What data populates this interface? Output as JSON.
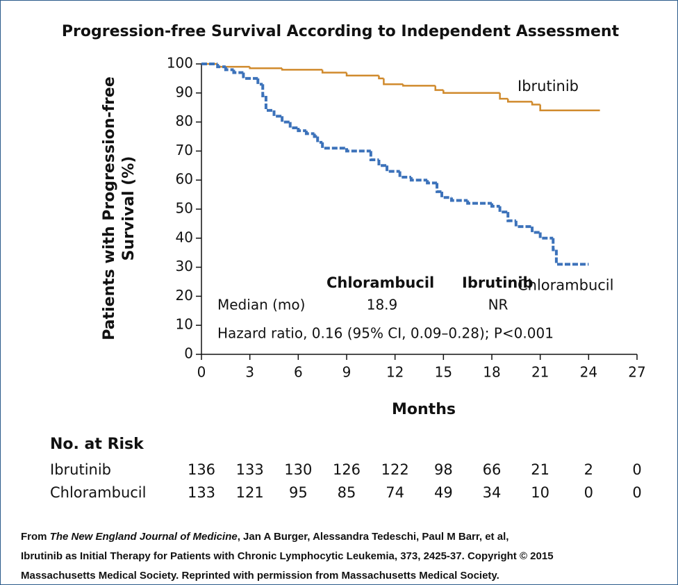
{
  "chart_data": {
    "type": "step",
    "title": "Progression-free Survival According to Independent Assessment",
    "x_label": "Months",
    "y_label": [
      "Patients with Progression-free",
      "Survival (%)"
    ],
    "xlim": [
      0,
      27
    ],
    "ylim": [
      0,
      100
    ],
    "xticks": [
      0,
      3,
      6,
      9,
      12,
      15,
      18,
      21,
      24,
      27
    ],
    "yticks": [
      0,
      10,
      20,
      30,
      40,
      50,
      60,
      70,
      80,
      90,
      100
    ],
    "series": [
      {
        "name": "Ibrutinib",
        "color": "#d08a2c",
        "dashed": false,
        "x": [
          0,
          1,
          3,
          5,
          7.5,
          9,
          11,
          11.3,
          12.5,
          14.5,
          15,
          18.5,
          19,
          20.5,
          21,
          24.7
        ],
        "values": [
          100,
          99,
          98.5,
          98,
          97,
          96,
          95,
          93,
          92.5,
          91,
          90,
          88,
          87,
          86,
          84,
          84
        ]
      },
      {
        "name": "Chlorambucil",
        "color": "#3c72ba",
        "dashed": true,
        "x": [
          0,
          1,
          1.5,
          2,
          2.6,
          3.5,
          3.8,
          4,
          4.5,
          5,
          5.5,
          6,
          6.5,
          7,
          7.2,
          7.5,
          9,
          10.5,
          11,
          11.5,
          12.3,
          13,
          14,
          14.6,
          14.9,
          15.5,
          16.5,
          18,
          18.5,
          19,
          19.5,
          20.5,
          21,
          21.8,
          22,
          24
        ],
        "values": [
          100,
          99,
          98,
          97,
          95,
          93,
          89,
          84,
          82,
          80,
          78,
          77,
          76,
          75,
          73,
          71,
          70,
          67,
          65,
          63,
          61,
          60,
          59,
          56,
          54,
          53,
          52,
          51,
          49,
          46,
          44,
          42,
          40,
          36,
          31,
          31
        ]
      }
    ],
    "median_table": {
      "headers": [
        "Chlorambucil",
        "Ibrutinib"
      ],
      "row_label": "Median (mo)",
      "row_values": [
        "18.9",
        "NR"
      ],
      "hazard": "Hazard ratio, 0.16 (95% CI, 0.09–0.28); P<0.001"
    },
    "risk_table": {
      "title": "No. at Risk",
      "rows": [
        {
          "label": "Ibrutinib",
          "values": [
            136,
            133,
            130,
            126,
            122,
            98,
            66,
            21,
            2,
            0
          ]
        },
        {
          "label": "Chlorambucil",
          "values": [
            133,
            121,
            95,
            85,
            74,
            49,
            34,
            10,
            0,
            0
          ]
        }
      ]
    }
  },
  "footer": {
    "line1": [
      "From",
      "The New England Journal of Medicine",
      ", Jan A Burger, Alessandra Tedeschi, Paul M Barr, et al,"
    ],
    "line2": "Ibrutinib as Initial Therapy for Patients with Chronic Lymphocytic Leukemia, 373, 2425-37. Copyright © 2015",
    "line3": "Massachusetts Medical Society. Reprinted with permission from Massachusetts Medical Society."
  }
}
